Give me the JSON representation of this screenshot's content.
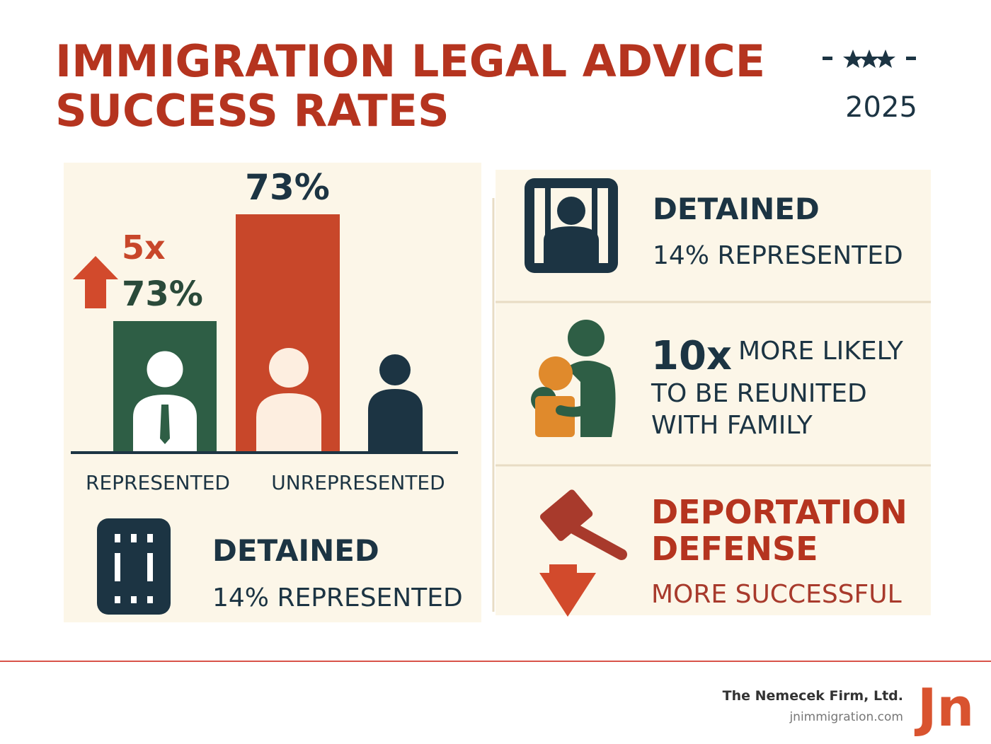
{
  "header": {
    "title_lines": [
      "IMMIGRATION LEGAL ADVICE",
      "SUCCESS RATES"
    ],
    "year": "2025"
  },
  "left": {
    "multiplier": "5x",
    "arrow_value": "73%",
    "bar_value": "73%",
    "labels": [
      "REPRESENTED",
      "UNREPRESENTED"
    ],
    "detained": {
      "title": "DETAINED",
      "text": "14% REPRESENTED"
    }
  },
  "right": {
    "detained": {
      "title": "DETAINED",
      "text": "14% REPRESENTED"
    },
    "family": {
      "multiplier": "10x",
      "lines": [
        "MORE LIKELY",
        "TO BE REUNITED",
        "WITH FAMILY"
      ]
    },
    "deportation": {
      "title_lines": [
        "DEPORTATION",
        "DEFENSE"
      ],
      "text": "MORE SUCCESSFUL"
    }
  },
  "footer": {
    "firm": "The Nemecek Firm, Ltd.",
    "website": "jnimmigration.com",
    "logo": "Jn"
  }
}
